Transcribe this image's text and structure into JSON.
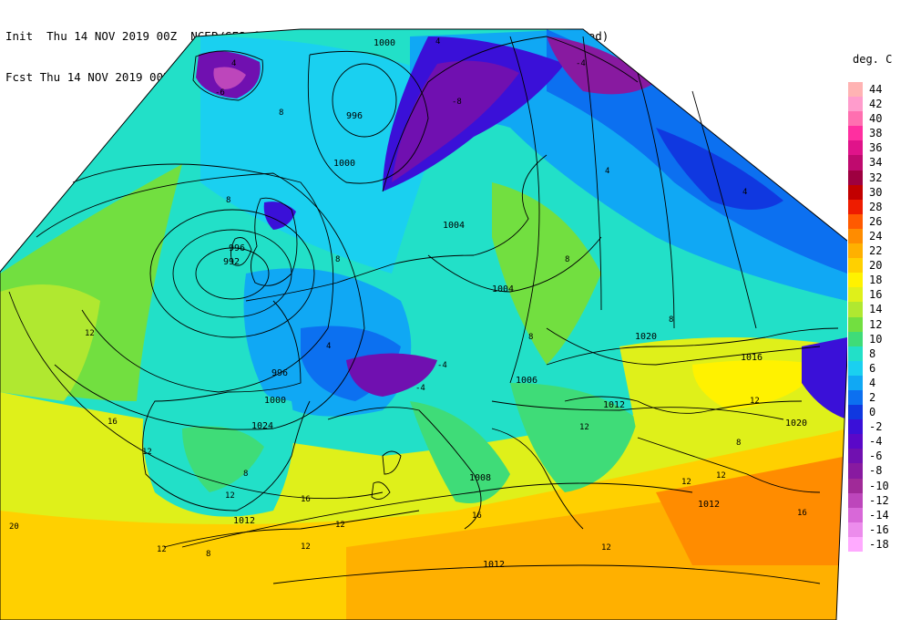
{
  "header": {
    "init_line": "Init  Thu 14 NOV 2019 00Z  NCEP/GFS forecast 2m temperatures in degrees Celcius (shaded)",
    "fcst_line": "Fcst Thu 14 NOV 2019 00Z  Mean Sea-Level Pressure (hPa) (black)."
  },
  "legend": {
    "title": "deg. C",
    "levels": [
      {
        "label": "44",
        "color": "#ffb3b3"
      },
      {
        "label": "42",
        "color": "#ff9ccc"
      },
      {
        "label": "40",
        "color": "#ff6fb0"
      },
      {
        "label": "38",
        "color": "#ff2fa0"
      },
      {
        "label": "36",
        "color": "#e0138a"
      },
      {
        "label": "34",
        "color": "#bf0a6e"
      },
      {
        "label": "32",
        "color": "#9e0040"
      },
      {
        "label": "30",
        "color": "#c20000"
      },
      {
        "label": "28",
        "color": "#ee1c00"
      },
      {
        "label": "26",
        "color": "#ff5a00"
      },
      {
        "label": "24",
        "color": "#ff8c00"
      },
      {
        "label": "22",
        "color": "#ffb000"
      },
      {
        "label": "20",
        "color": "#ffd000"
      },
      {
        "label": "18",
        "color": "#fff200"
      },
      {
        "label": "16",
        "color": "#dff01a"
      },
      {
        "label": "14",
        "color": "#b0e830"
      },
      {
        "label": "12",
        "color": "#72df40"
      },
      {
        "label": "10",
        "color": "#3fdc78"
      },
      {
        "label": "8",
        "color": "#22e0c8"
      },
      {
        "label": "6",
        "color": "#1ad0f0"
      },
      {
        "label": "4",
        "color": "#10a8f4"
      },
      {
        "label": "2",
        "color": "#0c70f0"
      },
      {
        "label": "0",
        "color": "#1038e0"
      },
      {
        "label": "-2",
        "color": "#3a10d8"
      },
      {
        "label": "-4",
        "color": "#5a08c8"
      },
      {
        "label": "-6",
        "color": "#7010b0"
      },
      {
        "label": "-8",
        "color": "#881aa0"
      },
      {
        "label": "-10",
        "color": "#a02a98"
      },
      {
        "label": "-12",
        "color": "#bd46bb"
      },
      {
        "label": "-14",
        "color": "#d868d8"
      },
      {
        "label": "-16",
        "color": "#ec8cec"
      },
      {
        "label": "-18",
        "color": "#ffaaff"
      }
    ]
  },
  "map": {
    "pressure_labels": [
      "1000",
      "996",
      "1000",
      "1004",
      "996",
      "992",
      "1004",
      "996",
      "1000",
      "1024",
      "1020",
      "1016",
      "1012",
      "1020",
      "1006",
      "1008",
      "1012",
      "1012",
      "1012"
    ],
    "temperature_labels": [
      "4",
      "4",
      "-6",
      "-4",
      "-8",
      "8",
      "8",
      "8",
      "8",
      "4",
      "4",
      "4",
      "12",
      "-4",
      "-4",
      "8",
      "12",
      "16",
      "12",
      "8",
      "12",
      "12",
      "12",
      "8",
      "12",
      "16",
      "8",
      "20",
      "12",
      "12",
      "12",
      "16",
      "12",
      "8",
      "16"
    ]
  }
}
